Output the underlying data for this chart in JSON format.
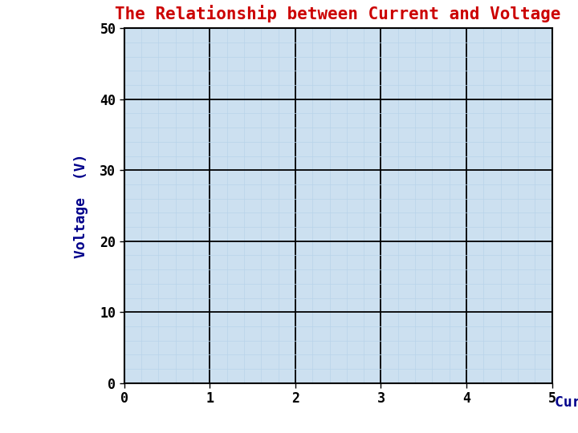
{
  "title": "The Relationship between Current and Voltage",
  "title_color": "#cc0000",
  "title_fontsize": 15,
  "ylabel": "Voltage  (V)",
  "xlabel": "Current (A)",
  "label_color": "#00008B",
  "label_fontsize": 13,
  "xlim": [
    0,
    5
  ],
  "ylim": [
    0,
    50
  ],
  "xticks": [
    0,
    1,
    2,
    3,
    4,
    5
  ],
  "yticks": [
    0,
    10,
    20,
    30,
    40,
    50
  ],
  "major_grid_color": "#000000",
  "major_grid_linewidth": 1.3,
  "minor_grid_color": "#b8d4ea",
  "minor_grid_linewidth": 0.5,
  "grid_background_color": "#cce0f0",
  "x_minor_per_major": 5,
  "y_minor_per_major": 5,
  "tick_label_fontsize": 12,
  "tick_label_color": "#000000",
  "figure_background": "#ffffff"
}
